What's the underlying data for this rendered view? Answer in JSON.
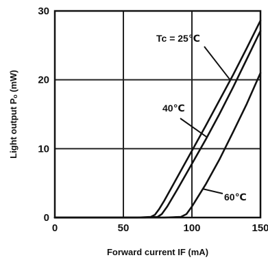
{
  "chart_data": {
    "type": "line",
    "xlabel": "Forward current IF (mA)",
    "ylabel": "Light output Pₒ (mW)",
    "xlim": [
      0,
      150
    ],
    "ylim": [
      0,
      30
    ],
    "x_ticks": [
      "0",
      "50",
      "100",
      "150"
    ],
    "y_ticks": [
      "0",
      "10",
      "20",
      "30"
    ],
    "grid": true,
    "series": [
      {
        "name": "Tc = 25℃",
        "x": [
          0,
          60,
          70,
          73,
          76,
          80,
          90,
          100,
          110,
          120,
          130,
          140,
          150
        ],
        "y": [
          0,
          0,
          0.1,
          0.4,
          1.2,
          2.5,
          6.1,
          9.7,
          13.3,
          17.0,
          20.7,
          24.6,
          28.6
        ]
      },
      {
        "name": "40℃",
        "x": [
          0,
          65,
          75,
          78,
          82,
          90,
          100,
          110,
          120,
          130,
          140,
          150
        ],
        "y": [
          0,
          0,
          0.1,
          0.5,
          1.6,
          4.3,
          7.8,
          11.3,
          15.0,
          18.9,
          23.0,
          27.1
        ]
      },
      {
        "name": "60℃",
        "x": [
          0,
          80,
          92,
          96,
          100,
          105,
          110,
          120,
          130,
          140,
          150
        ],
        "y": [
          0,
          0,
          0.1,
          0.5,
          1.6,
          3.2,
          4.8,
          8.4,
          12.4,
          16.5,
          21.0
        ]
      }
    ],
    "annotations": [
      {
        "text": "Tc = 25℃",
        "series": 0,
        "x": 128
      },
      {
        "text": "40℃",
        "series": 1,
        "x": 111
      },
      {
        "text": "60℃",
        "series": 2,
        "x": 108
      }
    ]
  }
}
